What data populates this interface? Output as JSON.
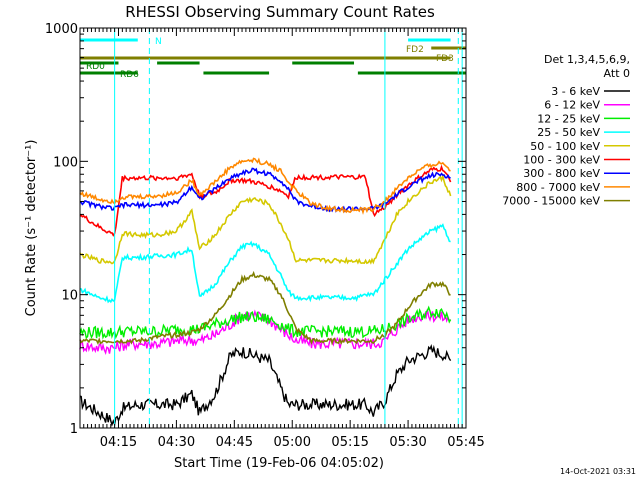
{
  "chart_data": {
    "type": "line",
    "title": "RHESSI Observing Summary Count Rates",
    "xlabel": "Start Time (19-Feb-06 04:05:02)",
    "ylabel": "Count Rate (s⁻¹ detector⁻¹)",
    "yscale": "log",
    "ylim": [
      1,
      1000
    ],
    "xlim": [
      "04:05:02",
      "05:45:00"
    ],
    "x_ticks": [
      "04:15",
      "04:30",
      "04:45",
      "05:00",
      "05:15",
      "05:30",
      "05:45"
    ],
    "y_ticks": [
      "1",
      "10",
      "100",
      "1000"
    ],
    "legend_title": [
      "Det 1,3,4,5,6,9,",
      "Att 0"
    ],
    "legend_position": "right",
    "timestamp": "14-Oct-2021 03:31",
    "times": [
      "04:05",
      "04:10",
      "04:14",
      "04:16",
      "04:20",
      "04:25",
      "04:30",
      "04:34",
      "04:36",
      "04:40",
      "04:44",
      "04:47",
      "04:50",
      "04:54",
      "04:57",
      "04:59",
      "05:01",
      "05:05",
      "05:10",
      "05:15",
      "05:17",
      "05:19",
      "05:21",
      "05:24",
      "05:27",
      "05:30",
      "05:33",
      "05:36",
      "05:39",
      "05:41"
    ],
    "series": [
      {
        "name": "3 - 6 keV",
        "color": "#000000",
        "values": [
          1.6,
          1.3,
          1.1,
          1.4,
          1.5,
          1.5,
          1.5,
          1.8,
          1.3,
          1.8,
          3.5,
          3.8,
          3.5,
          3.2,
          2,
          1.5,
          1.5,
          1.5,
          1.5,
          1.5,
          1.5,
          1.5,
          1.3,
          1.6,
          2.5,
          3.2,
          3.5,
          3.8,
          3.6,
          3.2
        ]
      },
      {
        "name": "6 - 12 keV",
        "color": "#ff00ff",
        "values": [
          4.2,
          4.0,
          4.0,
          4.2,
          4.3,
          4.3,
          4.5,
          4.6,
          4.5,
          5,
          6,
          7,
          7,
          6.5,
          5.5,
          5,
          4.5,
          4.3,
          4.3,
          4.3,
          4.3,
          4.3,
          4.3,
          4.5,
          5.5,
          6.5,
          7,
          7,
          6.8,
          6.5
        ]
      },
      {
        "name": "12 - 25 keV",
        "color": "#00ee00",
        "values": [
          5.2,
          5.2,
          5.2,
          5.3,
          5.3,
          5.3,
          5.5,
          5.5,
          5.5,
          6,
          6.5,
          6.8,
          6.8,
          6.5,
          6,
          5.5,
          5.3,
          5.3,
          5.3,
          5.3,
          5.3,
          5.3,
          5.3,
          5.5,
          6,
          6.5,
          7,
          7.5,
          7.5,
          6.5
        ]
      },
      {
        "name": "25 - 50 keV",
        "color": "#00ffff",
        "values": [
          11,
          9.5,
          9,
          19,
          19,
          19.5,
          20,
          22,
          9.5,
          12,
          18,
          23,
          24,
          20,
          14,
          10.5,
          9.5,
          9.5,
          9.5,
          9.5,
          9.5,
          10,
          10,
          13,
          17,
          22,
          26,
          30,
          33,
          25
        ]
      },
      {
        "name": "50 - 100 keV",
        "color": "#d4c800",
        "values": [
          20,
          18,
          17.5,
          29,
          28,
          28,
          30,
          42,
          22,
          28,
          40,
          50,
          52,
          48,
          34,
          26,
          18,
          18,
          18,
          18,
          18,
          17.5,
          18,
          26,
          40,
          50,
          60,
          70,
          75,
          55
        ]
      },
      {
        "name": "100 - 300 keV",
        "color": "#ff0000",
        "values": [
          40,
          32,
          28,
          75,
          75,
          75,
          75,
          80,
          55,
          58,
          72,
          72,
          70,
          65,
          60,
          55,
          76,
          76,
          76,
          76,
          76,
          76,
          40,
          45,
          56,
          66,
          76,
          86,
          88,
          70
        ]
      },
      {
        "name": "300 - 800 keV",
        "color": "#0000ff",
        "values": [
          50,
          46,
          44,
          47,
          47,
          47,
          49,
          65,
          52,
          62,
          75,
          82,
          86,
          80,
          72,
          62,
          50,
          46,
          44,
          44,
          44,
          44,
          44,
          48,
          56,
          64,
          72,
          78,
          80,
          75
        ]
      },
      {
        "name": "800 - 7000 keV",
        "color": "#ff8800",
        "values": [
          58,
          52,
          50,
          54,
          54,
          55,
          58,
          72,
          56,
          70,
          90,
          100,
          102,
          95,
          85,
          70,
          60,
          48,
          44,
          43,
          43,
          43,
          44,
          50,
          62,
          75,
          86,
          94,
          97,
          85
        ]
      },
      {
        "name": "7000 - 15000 keV",
        "color": "#7f7f00",
        "values": [
          4.5,
          4.5,
          4.5,
          4.5,
          4.5,
          4.8,
          5,
          5.2,
          5.5,
          7,
          10,
          13,
          14,
          13,
          10,
          7.5,
          5.5,
          4.5,
          4.5,
          4.5,
          4.5,
          4.5,
          4.5,
          5,
          6,
          8,
          10,
          12,
          12,
          10
        ]
      }
    ],
    "attenuator_bars": [
      {
        "label": "N",
        "color": "#00ffff",
        "start": "04:05",
        "end": "04:20"
      },
      {
        "label": "",
        "color": "#00ffff",
        "start": "05:30",
        "end": "05:41"
      },
      {
        "label": "FD2",
        "color": "#7f7f00",
        "start": "05:36",
        "end": "05:45"
      },
      {
        "label": "FD3",
        "color": "#7f7f00",
        "start": "04:05",
        "end": "05:41"
      },
      {
        "label": "RD0",
        "color": "#007f00",
        "start": "04:05",
        "end": "04:15"
      },
      {
        "label": "",
        "color": "#007f00",
        "start": "04:25",
        "end": "04:36"
      },
      {
        "label": "",
        "color": "#007f00",
        "start": "05:00",
        "end": "05:16"
      },
      {
        "label": "RD6",
        "color": "#007f00",
        "start": "04:05",
        "end": "04:20"
      },
      {
        "label": "",
        "color": "#007f00",
        "start": "04:37",
        "end": "04:54"
      },
      {
        "label": "",
        "color": "#007f00",
        "start": "05:17",
        "end": "05:45"
      }
    ],
    "vertical_markers": [
      {
        "time": "04:14",
        "style": "solid",
        "color": "#00ffff"
      },
      {
        "time": "04:23",
        "style": "dashed",
        "color": "#00ffff"
      },
      {
        "time": "05:24",
        "style": "solid",
        "color": "#00ffff"
      },
      {
        "time": "05:43",
        "style": "dashed",
        "color": "#00ffff"
      },
      {
        "time": "05:44",
        "style": "solid",
        "color": "#00ffff"
      }
    ]
  }
}
